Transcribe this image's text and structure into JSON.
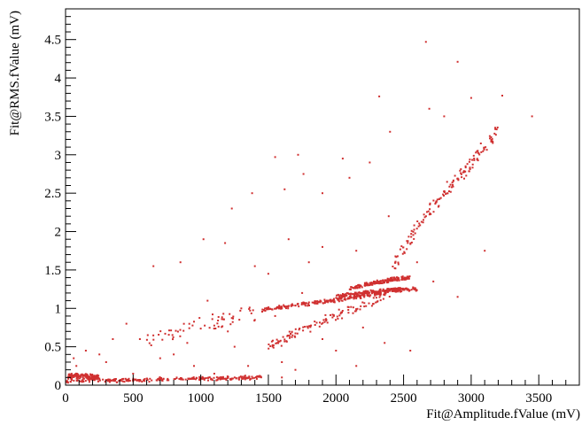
{
  "chart_data": {
    "type": "scatter",
    "title": "",
    "xlabel": "Fit@Amplitude.fValue (mV)",
    "ylabel": "Fit@RMS.fValue (mV)",
    "xlim": [
      0,
      3800
    ],
    "ylim": [
      0,
      4.9
    ],
    "xticks": [
      0,
      500,
      1000,
      1500,
      2000,
      2500,
      3000,
      3500
    ],
    "yticks": [
      0,
      0.5,
      1,
      1.5,
      2,
      2.5,
      3,
      3.5,
      4,
      4.5
    ],
    "grid": false,
    "legend": "none",
    "marker_color": "#d03030",
    "trends": [
      {
        "x": [
          0,
          150,
          400,
          800,
          1200,
          1450
        ],
        "y": [
          0.05,
          0.07,
          0.06,
          0.08,
          0.09,
          0.1
        ],
        "spread": 0.03
      },
      {
        "x": [
          20,
          100,
          250
        ],
        "y": [
          0.12,
          0.12,
          0.1
        ],
        "spread": 0.04
      },
      {
        "x": [
          1450,
          1700,
          2000,
          2200,
          2500
        ],
        "y": [
          0.98,
          1.04,
          1.11,
          1.16,
          1.25
        ],
        "spread": 0.03
      },
      {
        "x": [
          2000,
          2200,
          2400,
          2600
        ],
        "y": [
          1.15,
          1.2,
          1.24,
          1.25
        ],
        "spread": 0.03
      },
      {
        "x": [
          2100,
          2250,
          2400,
          2550
        ],
        "y": [
          1.25,
          1.32,
          1.37,
          1.4
        ],
        "spread": 0.03
      },
      {
        "x": [
          1500,
          1800,
          2000,
          2200,
          2400
        ],
        "y": [
          0.5,
          0.75,
          0.9,
          1.05,
          1.2
        ],
        "spread": 0.08
      },
      {
        "x": [
          2400,
          2550,
          2700,
          2850,
          3000,
          3200
        ],
        "y": [
          1.5,
          1.9,
          2.3,
          2.6,
          2.9,
          3.3
        ],
        "spread": 0.12
      },
      {
        "x": [
          600,
          900,
          1200,
          1400
        ],
        "y": [
          0.6,
          0.75,
          0.85,
          0.95
        ],
        "spread": 0.12
      }
    ],
    "points": [
      [
        2665,
        4.47
      ],
      [
        2900,
        4.21
      ],
      [
        2320,
        3.76
      ],
      [
        3000,
        3.74
      ],
      [
        3230,
        3.77
      ],
      [
        2690,
        3.6
      ],
      [
        3450,
        3.5
      ],
      [
        2800,
        3.5
      ],
      [
        2400,
        3.3
      ],
      [
        1760,
        2.75
      ],
      [
        1550,
        2.97
      ],
      [
        1720,
        3.0
      ],
      [
        1230,
        2.3
      ],
      [
        1380,
        2.5
      ],
      [
        1620,
        2.55
      ],
      [
        1900,
        2.5
      ],
      [
        2100,
        2.7
      ],
      [
        2250,
        2.9
      ],
      [
        1020,
        1.9
      ],
      [
        1180,
        1.85
      ],
      [
        650,
        1.55
      ],
      [
        850,
        1.6
      ],
      [
        1400,
        1.55
      ],
      [
        1900,
        1.8
      ],
      [
        2150,
        1.75
      ],
      [
        2600,
        1.6
      ],
      [
        1500,
        1.45
      ],
      [
        2720,
        1.35
      ],
      [
        2900,
        1.15
      ],
      [
        3100,
        1.75
      ],
      [
        1300,
        1.0
      ],
      [
        1200,
        0.7
      ],
      [
        900,
        0.55
      ],
      [
        1900,
        0.6
      ],
      [
        2200,
        0.75
      ],
      [
        2360,
        0.55
      ],
      [
        1800,
        1.6
      ],
      [
        2050,
        2.95
      ],
      [
        2390,
        2.2
      ],
      [
        2000,
        0.45
      ],
      [
        2150,
        0.25
      ],
      [
        1600,
        0.3
      ],
      [
        1700,
        0.2
      ],
      [
        1100,
        0.15
      ],
      [
        1350,
        0.25
      ],
      [
        700,
        0.35
      ],
      [
        500,
        0.15
      ],
      [
        300,
        0.3
      ],
      [
        150,
        0.45
      ],
      [
        60,
        0.35
      ],
      [
        250,
        0.4
      ],
      [
        80,
        0.25
      ],
      [
        450,
        0.8
      ],
      [
        350,
        0.6
      ],
      [
        1600,
        0.1
      ],
      [
        1750,
        1.2
      ],
      [
        1400,
        0.85
      ],
      [
        1050,
        1.1
      ],
      [
        800,
        0.4
      ],
      [
        950,
        0.25
      ],
      [
        1650,
        1.9
      ],
      [
        2550,
        0.45
      ],
      [
        1550,
        0.9
      ],
      [
        1250,
        0.5
      ],
      [
        550,
        0.6
      ]
    ]
  }
}
